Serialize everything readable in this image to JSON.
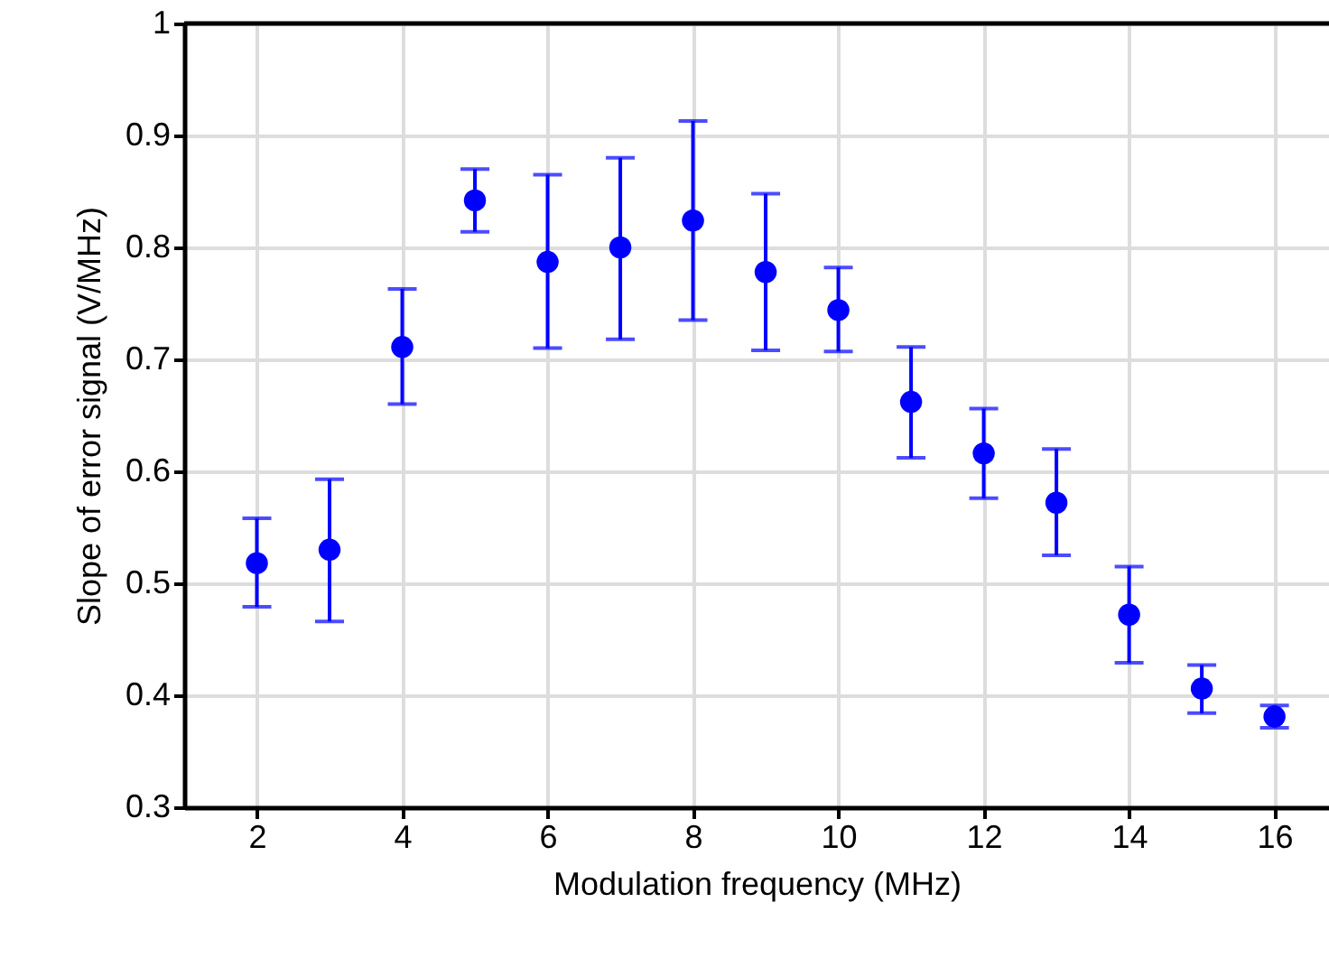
{
  "chart_data": {
    "type": "scatter",
    "xlabel": "Modulation frequency (MHz)",
    "ylabel": "Slope of error signal (V/MHz)",
    "x": [
      2,
      3,
      4,
      5,
      6,
      7,
      8,
      9,
      10,
      11,
      12,
      13,
      14,
      15,
      16
    ],
    "values": [
      0.518,
      0.53,
      0.711,
      0.842,
      0.787,
      0.8,
      0.824,
      0.778,
      0.744,
      0.662,
      0.616,
      0.572,
      0.472,
      0.406,
      0.381
    ],
    "errors": [
      [
        0.479,
        0.558
      ],
      [
        0.466,
        0.593
      ],
      [
        0.66,
        0.763
      ],
      [
        0.814,
        0.87
      ],
      [
        0.71,
        0.865
      ],
      [
        0.718,
        0.88
      ],
      [
        0.735,
        0.913
      ],
      [
        0.708,
        0.848
      ],
      [
        0.707,
        0.782
      ],
      [
        0.612,
        0.711
      ],
      [
        0.576,
        0.656
      ],
      [
        0.525,
        0.62
      ],
      [
        0.429,
        0.515
      ],
      [
        0.384,
        0.427
      ],
      [
        0.371,
        0.391
      ]
    ],
    "color": "#0000ff",
    "marker": "circle",
    "xlim": [
      1,
      16.75
    ],
    "ylim": [
      0.3,
      1
    ],
    "xticks": [
      2,
      4,
      6,
      8,
      10,
      12,
      14,
      16
    ],
    "yticks": [
      0.3,
      0.4,
      0.5,
      0.6,
      0.7,
      0.8,
      0.9,
      1
    ],
    "grid": true
  }
}
